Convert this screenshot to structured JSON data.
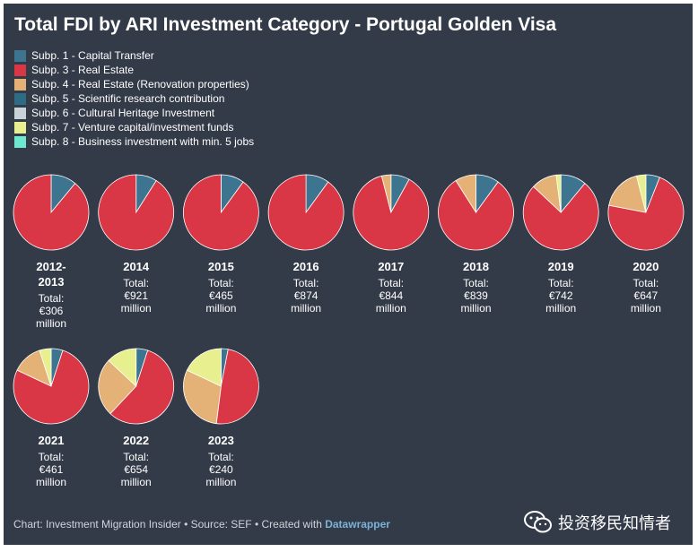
{
  "title": "Total FDI by ARI Investment Category - Portugal Golden Visa",
  "footer": {
    "credit": "Chart: Investment Migration Insider • Source: SEF • Created with",
    "tool": "Datawrapper"
  },
  "watermark": {
    "text": "投资移民知情者",
    "icon": "wechat-icon"
  },
  "chart_data": {
    "type": "pie",
    "title": "Total FDI by ARI Investment Category - Portugal Golden Visa",
    "legend_placement": "top-left",
    "series": [
      {
        "name": "Subp. 1 - Capital Transfer",
        "color": "#3d7590"
      },
      {
        "name": "Subp. 3 - Real Estate",
        "color": "#d93646"
      },
      {
        "name": "Subp. 4 - Real Estate (Renovation properties)",
        "color": "#e4b277"
      },
      {
        "name": "Subp. 5 - Scientific research contribution",
        "color": "#2e6b85"
      },
      {
        "name": "Subp. 6 - Cultural Heritage Investment",
        "color": "#c8d3d9"
      },
      {
        "name": "Subp. 7 - Venture capital/investment funds",
        "color": "#e8ef8f"
      },
      {
        "name": "Subp. 8 - Business investment with min. 5 jobs",
        "color": "#6ee8cf"
      }
    ],
    "pies": [
      {
        "label": "2012-2013",
        "total_label": "Total:",
        "total": "€306",
        "unit": "million",
        "values": [
          11,
          89,
          0,
          0,
          0,
          0,
          0
        ]
      },
      {
        "label": "2014",
        "total_label": "Total:",
        "total": "€921",
        "unit": "million",
        "values": [
          9,
          91,
          0,
          0,
          0,
          0,
          0
        ]
      },
      {
        "label": "2015",
        "total_label": "Total:",
        "total": "€465",
        "unit": "million",
        "values": [
          10,
          90,
          0,
          0,
          0,
          0,
          0
        ]
      },
      {
        "label": "2016",
        "total_label": "Total:",
        "total": "€874",
        "unit": "million",
        "values": [
          10,
          90,
          0,
          0,
          0,
          0,
          0
        ]
      },
      {
        "label": "2017",
        "total_label": "Total:",
        "total": "€844",
        "unit": "million",
        "values": [
          8,
          88,
          4,
          0,
          0,
          0,
          0
        ]
      },
      {
        "label": "2018",
        "total_label": "Total:",
        "total": "€839",
        "unit": "million",
        "values": [
          10,
          81,
          9,
          0,
          0,
          0,
          0
        ]
      },
      {
        "label": "2019",
        "total_label": "Total:",
        "total": "€742",
        "unit": "million",
        "values": [
          11,
          76,
          11,
          0,
          0,
          2,
          0
        ]
      },
      {
        "label": "2020",
        "total_label": "Total:",
        "total": "€647",
        "unit": "million",
        "values": [
          6,
          72,
          18,
          0,
          0,
          4,
          0
        ]
      },
      {
        "label": "2021",
        "total_label": "Total:",
        "total": "€461",
        "unit": "million",
        "values": [
          5,
          77,
          13,
          0,
          0,
          5,
          0
        ]
      },
      {
        "label": "2022",
        "total_label": "Total:",
        "total": "€654",
        "unit": "million",
        "values": [
          5,
          57,
          25,
          0,
          0,
          13,
          0
        ]
      },
      {
        "label": "2023",
        "total_label": "Total:",
        "total": "€240",
        "unit": "million",
        "values": [
          3,
          49,
          30,
          0,
          0,
          18,
          0
        ]
      }
    ]
  }
}
